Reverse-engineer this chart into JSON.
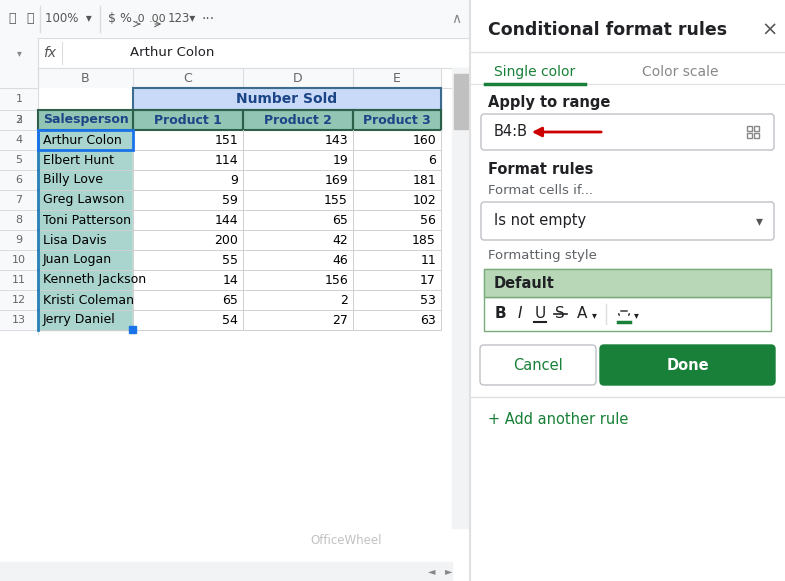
{
  "toolbar_text": "100%",
  "formula_bar_text": "Arthur Colon",
  "col_headers": [
    "B",
    "C",
    "D",
    "E"
  ],
  "merged_header": "Number Sold",
  "subheaders": [
    "Salesperson",
    "Product 1",
    "Product 2",
    "Product 3"
  ],
  "rows": [
    [
      "Arthur Colon",
      151,
      143,
      160
    ],
    [
      "Elbert Hunt",
      114,
      19,
      6
    ],
    [
      "Billy Love",
      9,
      169,
      181
    ],
    [
      "Greg Lawson",
      59,
      155,
      102
    ],
    [
      "Toni Patterson",
      144,
      65,
      56
    ],
    [
      "Lisa Davis",
      200,
      42,
      185
    ],
    [
      "Juan Logan",
      55,
      46,
      11
    ],
    [
      "Kenneth Jackson",
      14,
      156,
      17
    ],
    [
      "Kristi Coleman",
      65,
      2,
      53
    ],
    [
      "Jerry Daniel",
      54,
      27,
      63
    ]
  ],
  "panel_title": "Conditional format rules",
  "tab1": "Single color",
  "tab2": "Color scale",
  "apply_label": "Apply to range",
  "range_text": "B4:B",
  "format_rules_label": "Format rules",
  "format_cells_if_label": "Format cells if...",
  "dropdown_text": "Is not empty",
  "formatting_style_label": "Formatting style",
  "default_text": "Default",
  "cancel_text": "Cancel",
  "done_text": "Done",
  "add_rule_text": "+ Add another rule",
  "colors": {
    "bg": "#f8f9fa",
    "sheet_bg": "#ffffff",
    "toolbar_bg": "#f8f9fa",
    "col_header_bg": "#f8f9fa",
    "col_header_text": "#666666",
    "merged_header_bg": "#c9daf8",
    "merged_header_border": "#3d6b8e",
    "merged_header_text": "#1c4587",
    "subheader_bg": "#93c5b5",
    "subheader_border": "#2d5f4a",
    "subheader_text": "#1c4587",
    "salesperson_col_bg": "#aad4ce",
    "salesperson_col_text": "#000000",
    "salesperson_border_left": "#2980b9",
    "data_cell_bg": "#ffffff",
    "data_cell_text": "#000000",
    "grid_line": "#d0d0d0",
    "panel_bg": "#ffffff",
    "panel_border": "#e0e0e0",
    "panel_title_text": "#202124",
    "tab_active_text": "#188038",
    "tab_active_line": "#188038",
    "tab_inactive_text": "#888888",
    "apply_label_text": "#202124",
    "range_box_border": "#bdc1c6",
    "range_text_color": "#202124",
    "arrow_color": "#cc0000",
    "format_rules_text": "#202124",
    "label_gray": "#5f6368",
    "dropdown_border": "#bdc1c6",
    "dropdown_text": "#202124",
    "format_style_bg": "#b7d7b7",
    "format_style_border": "#7aab7a",
    "format_style_text": "#202124",
    "done_bg": "#188038",
    "done_text_color": "#ffffff",
    "cancel_border": "#bdc1c6",
    "cancel_text_color": "#188038",
    "add_rule_text_color": "#188038",
    "divider_color": "#e0e0e0",
    "blue_sel_border": "#1a73e8",
    "cursor_blue": "#1a73e8",
    "scrollbar_bg": "#f1f3f4",
    "scrollbar_thumb": "#c0c0c0"
  },
  "figwidth": 7.85,
  "figheight": 5.81
}
